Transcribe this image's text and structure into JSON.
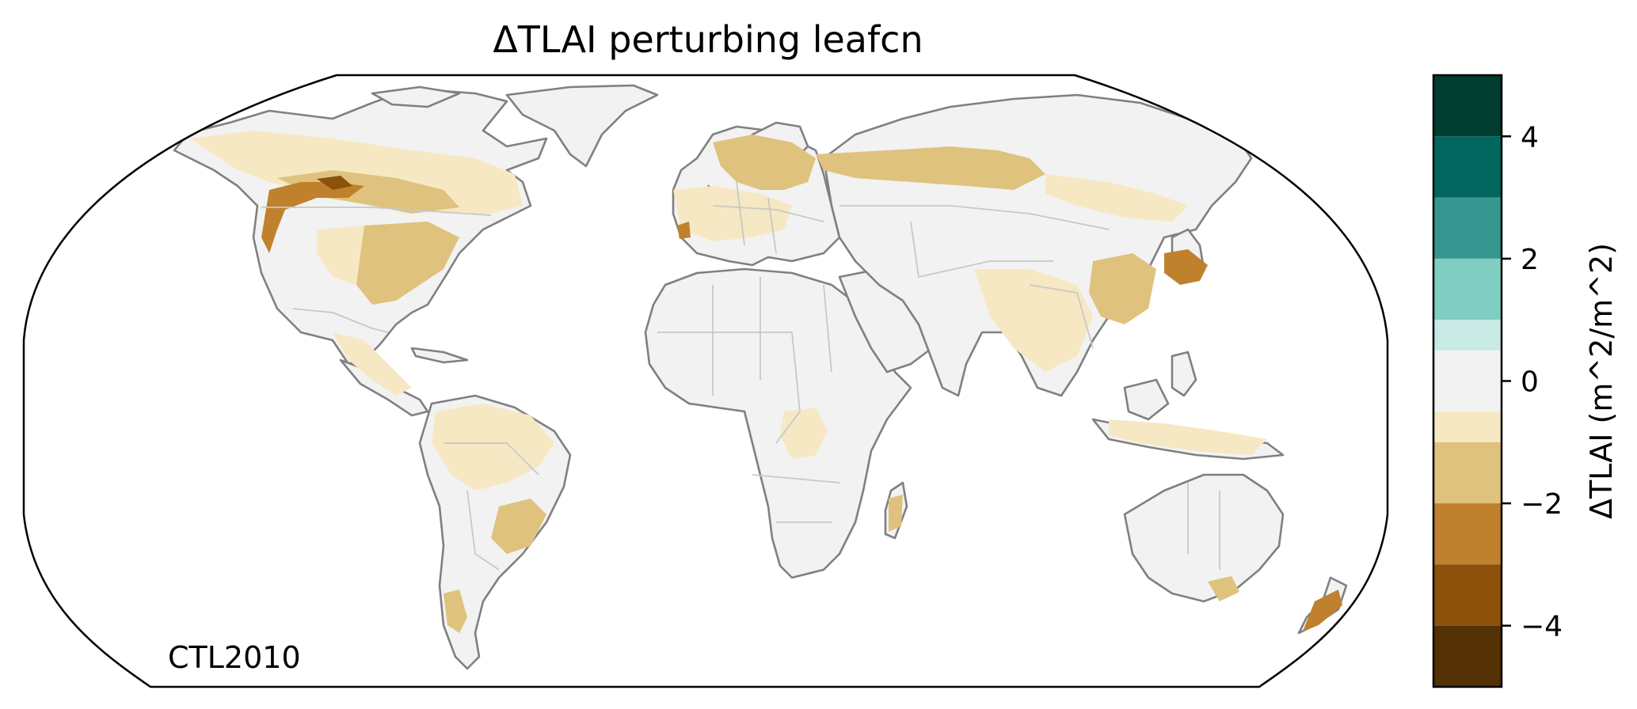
{
  "title": "ΔTLAI perturbing leafcn",
  "corner_label": "CTL2010",
  "colorbar": {
    "label": "ΔTLAI (m^2/m^2)",
    "range": [
      -5,
      5
    ],
    "ticks": [
      {
        "value": 4,
        "label": "4"
      },
      {
        "value": 2,
        "label": "2"
      },
      {
        "value": 0,
        "label": "0"
      },
      {
        "value": -2,
        "label": "−2"
      },
      {
        "value": -4,
        "label": "−4"
      }
    ],
    "bins": [
      {
        "from": 4,
        "to": 5,
        "color": "#003c30"
      },
      {
        "from": 3,
        "to": 4,
        "color": "#01665e"
      },
      {
        "from": 2,
        "to": 3,
        "color": "#35978f"
      },
      {
        "from": 1,
        "to": 2,
        "color": "#80cdc1"
      },
      {
        "from": 0.5,
        "to": 1,
        "color": "#c7eae5"
      },
      {
        "from": -0.5,
        "to": 0.5,
        "color": "#f2f2f2"
      },
      {
        "from": -1,
        "to": -0.5,
        "color": "#f6e8c3"
      },
      {
        "from": -2,
        "to": -1,
        "color": "#dfc27d"
      },
      {
        "from": -3,
        "to": -2,
        "color": "#bf812d"
      },
      {
        "from": -4,
        "to": -3,
        "color": "#8c510a"
      },
      {
        "from": -5,
        "to": -4,
        "color": "#543005"
      }
    ]
  },
  "map": {
    "projection": "Robinson",
    "land_default_color": "#f2f2f2",
    "coastline_color": "#808080",
    "border_color": "#c8c8c8",
    "regions": [
      {
        "name": "Canada / northern US",
        "level": "light"
      },
      {
        "name": "Pacific Northwest",
        "level": "strong"
      },
      {
        "name": "Eastern US",
        "level": "medium"
      },
      {
        "name": "Amazon",
        "level": "light"
      },
      {
        "name": "Southeast Brazil",
        "level": "medium"
      },
      {
        "name": "Europe / Scandinavia",
        "level": "medium"
      },
      {
        "name": "Russia band",
        "level": "medium"
      },
      {
        "name": "Eastern China",
        "level": "medium"
      },
      {
        "name": "Japan / Korea",
        "level": "strong"
      },
      {
        "name": "New Zealand",
        "level": "strong"
      }
    ]
  }
}
